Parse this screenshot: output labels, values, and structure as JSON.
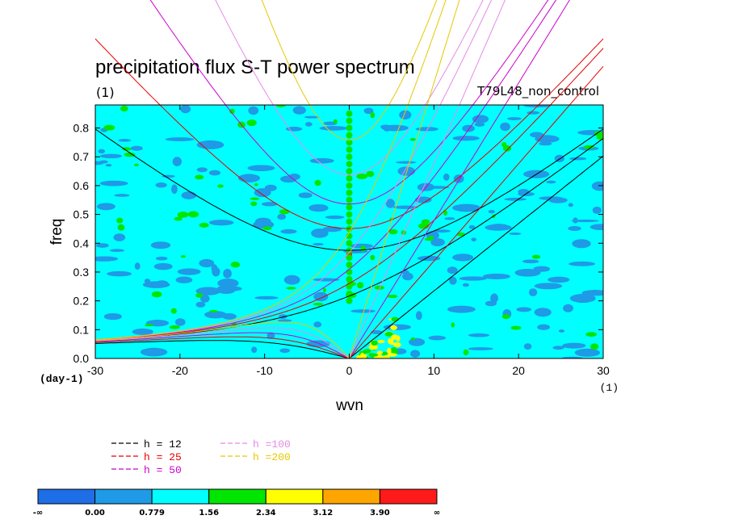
{
  "chart_data": {
    "type": "heatmap",
    "title": "precipitation flux S-T power spectrum",
    "subtitle_left": "(1)",
    "subtitle_right": "T79L48_non_control",
    "xlabel": "wvn",
    "ylabel": "freq",
    "x_unit": "(1)",
    "y_unit": "(day-1)",
    "xlim": [
      -30,
      30
    ],
    "ylim": [
      0,
      0.88
    ],
    "xticks": [
      -30,
      -20,
      -10,
      0,
      10,
      20,
      30
    ],
    "xtick_labels": [
      "-30",
      "-20",
      "-10",
      "0",
      "10",
      "20",
      "30"
    ],
    "yticks": [
      0,
      0.1,
      0.2,
      0.3,
      0.4,
      0.5,
      0.6,
      0.7,
      0.8
    ],
    "ytick_labels": [
      "0.0",
      "0.1",
      "0.2",
      "0.3",
      "0.4",
      "0.5",
      "0.6",
      "0.7",
      "0.8"
    ],
    "colorbar": {
      "levels": [
        "-∞",
        "0.00",
        "0.779",
        "1.56",
        "2.34",
        "3.12",
        "3.90",
        "∞"
      ],
      "colors": [
        "#1e6ee8",
        "#1f9ae6",
        "#00ffff",
        "#00e600",
        "#ffff00",
        "#ffa500",
        "#ff1a1a"
      ]
    },
    "field_background_color": "#00ffff",
    "dispersion_curves": [
      {
        "label": "h = 12",
        "h": 12,
        "color": "#000000"
      },
      {
        "label": "h = 25",
        "h": 25,
        "color": "#e60000"
      },
      {
        "label": "h = 50",
        "h": 50,
        "color": "#cc00cc"
      },
      {
        "label": "h =100",
        "h": 100,
        "color": "#e68ae6"
      },
      {
        "label": "h =200",
        "h": 200,
        "color": "#e6c800"
      }
    ],
    "features": [
      {
        "kind": "spectral_peak",
        "x": 0,
        "y": 0.36,
        "color": "#ff1a1a"
      },
      {
        "kind": "high_power_column",
        "x": 0,
        "y_range": [
          0.2,
          0.86
        ],
        "color": "#00e600"
      },
      {
        "kind": "high_power_region",
        "x_range": [
          1,
          6
        ],
        "y_range": [
          0,
          0.17
        ],
        "color": "#ffff00"
      }
    ]
  }
}
